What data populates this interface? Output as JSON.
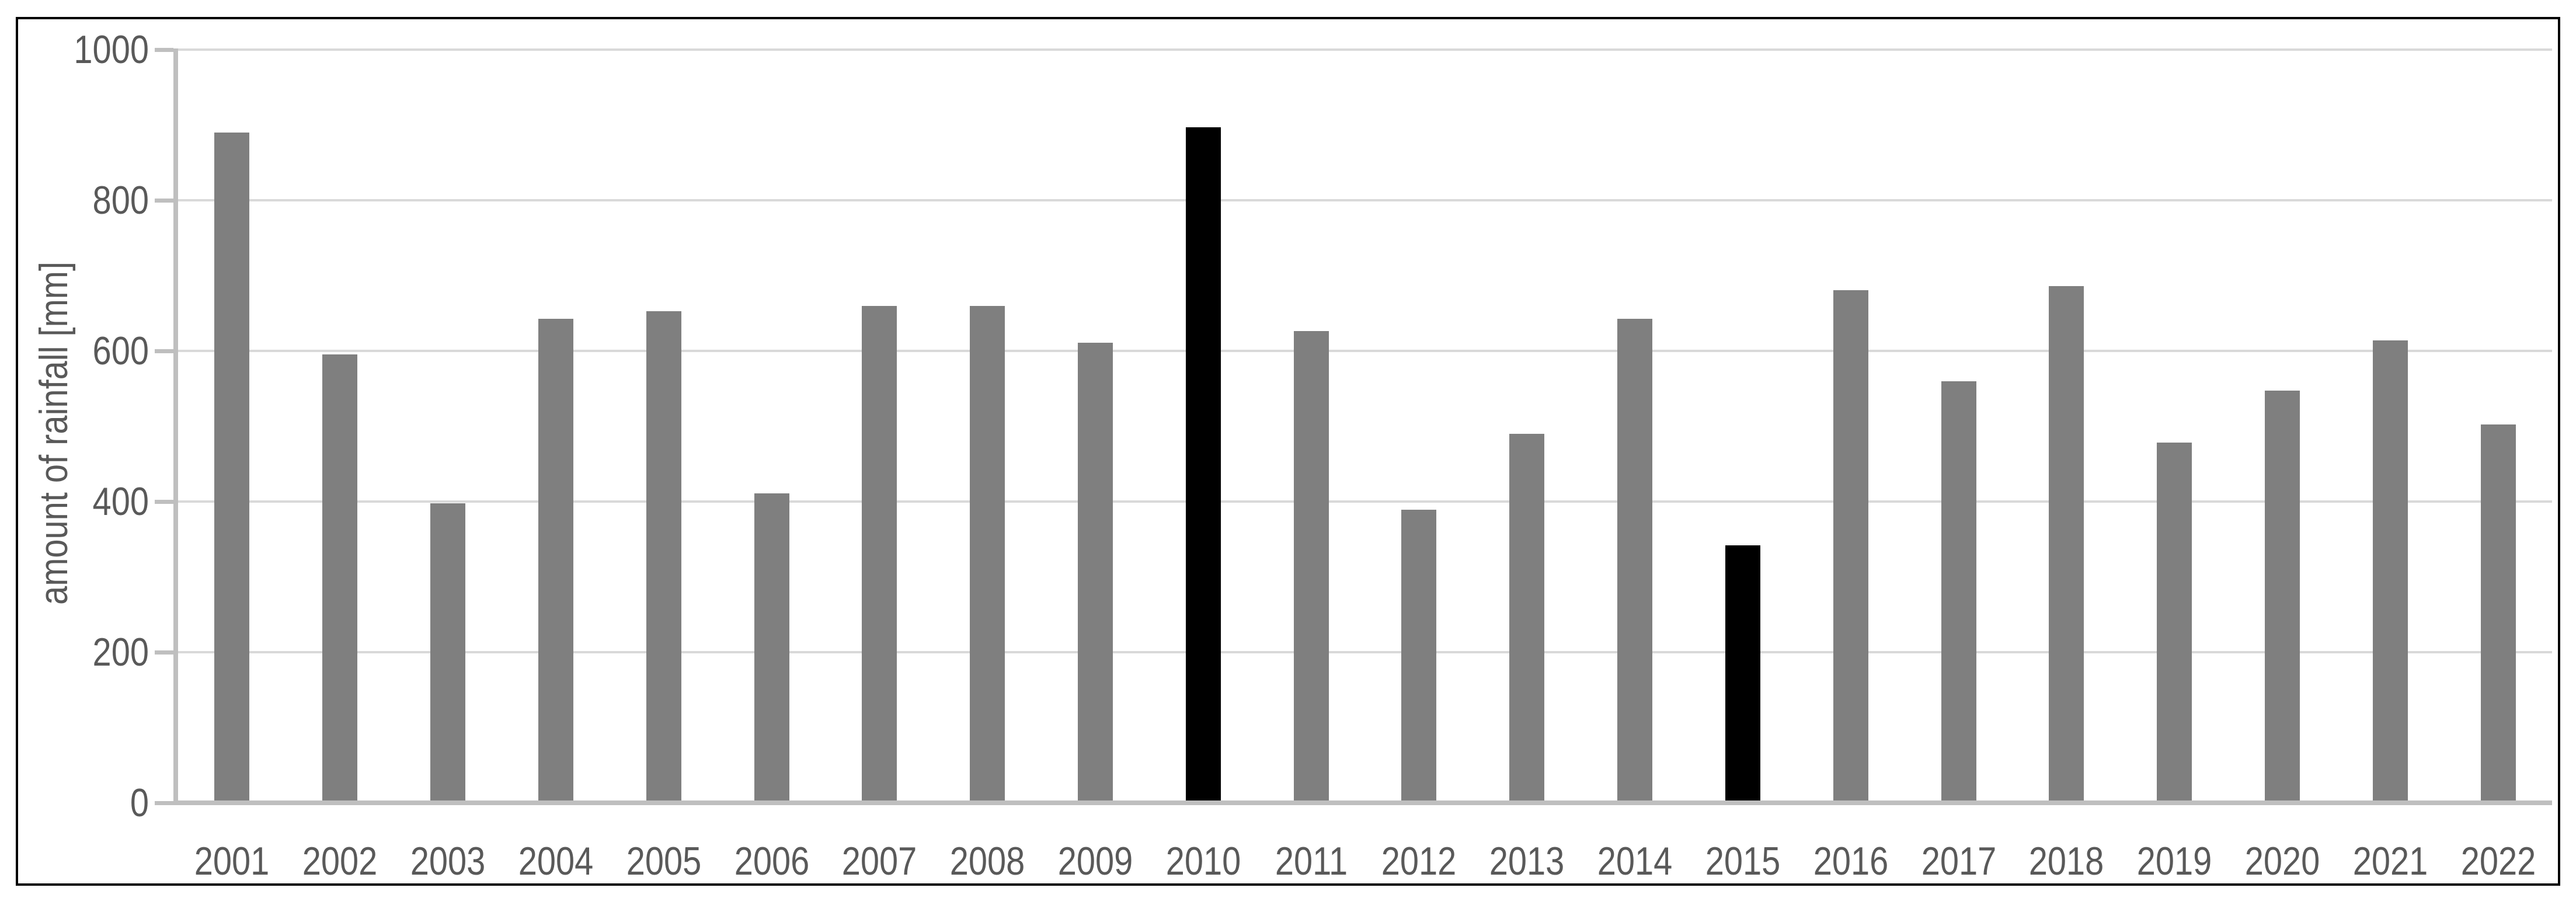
{
  "chart_data": {
    "type": "bar",
    "title": "",
    "xlabel": "",
    "ylabel": "amount of rainfall [mm]",
    "categories": [
      "2001",
      "2002",
      "2003",
      "2004",
      "2005",
      "2006",
      "2007",
      "2008",
      "2009",
      "2010",
      "2011",
      "2012",
      "2013",
      "2014",
      "2015",
      "2016",
      "2017",
      "2018",
      "2019",
      "2020",
      "2021",
      "2022"
    ],
    "values": [
      890,
      595,
      398,
      643,
      653,
      411,
      660,
      660,
      611,
      897,
      626,
      389,
      490,
      643,
      342,
      681,
      560,
      686,
      478,
      547,
      614,
      502
    ],
    "highlighted_categories": [
      "2010",
      "2015"
    ],
    "ylim": [
      0,
      1000
    ],
    "yticks": [
      0,
      200,
      400,
      600,
      800,
      1000
    ],
    "grid": "horizontal",
    "legend": "none",
    "colors": {
      "bar": "#7f7f7f",
      "highlighted_bar": "#000000",
      "gridline": "#d9d9d9",
      "axis_line": "#bfbfbf",
      "tick_label": "#595959",
      "frame_border": "#000000",
      "background": "#ffffff"
    }
  }
}
